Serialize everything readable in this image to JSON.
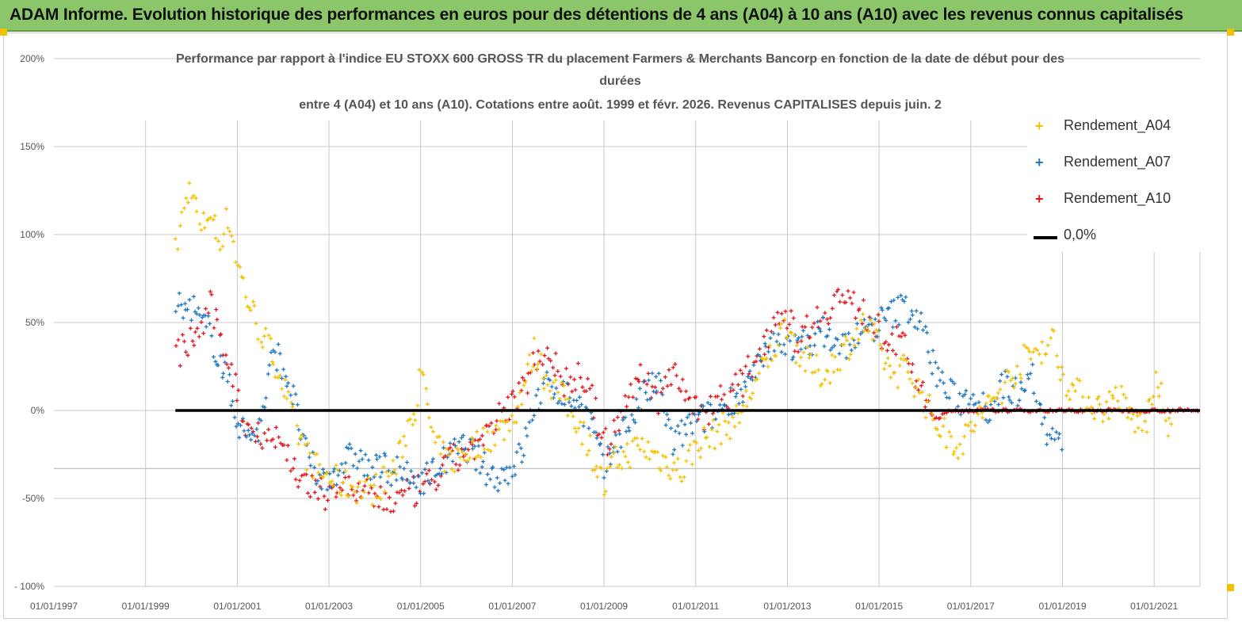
{
  "header": {
    "title": "ADAM Informe. Evolution historique des performances en euros pour des détentions de 4 ans (A04) à 10 ans (A10) avec les revenus connus capitalisés"
  },
  "colors": {
    "header_bg": "#8cc66b",
    "a04": "#f2c200",
    "a07": "#1f78c1",
    "a10": "#e8141c",
    "zero": "#000000",
    "grid": "#c8c8c8",
    "axis_text": "#555555"
  },
  "chart_data": {
    "type": "scatter",
    "title_lines": [
      "Performance par rapport à l'indice EU STOXX 600 GROSS TR  du placement Farmers & Merchants Bancorp en fonction de la date de début pour des",
      "durées",
      "entre 4 (A04) et 10 ans (A10).  Cotations entre août. 1999 et févr.  2026. Revenus CAPITALISES depuis juin. 2"
    ],
    "x_tick_labels": [
      "01/01/1997",
      "01/01/1999",
      "01/01/2001",
      "01/01/2003",
      "01/01/2005",
      "01/01/2007",
      "01/01/2009",
      "01/01/2011",
      "01/01/2013",
      "01/01/2015",
      "01/01/2017",
      "01/01/2019",
      "01/01/2021"
    ],
    "x_range": [
      1997.0,
      2022.0
    ],
    "y_tick_labels": [
      "200%",
      "150%",
      "100%",
      "50%",
      "0%",
      "-50%",
      "- 100%"
    ],
    "y_ticks": [
      200,
      150,
      100,
      50,
      0,
      -50,
      -100
    ],
    "ylim": [
      -100,
      200
    ],
    "legend": [
      {
        "name": "Rendement_A04",
        "marker": "+",
        "color_key": "a04"
      },
      {
        "name": "Rendement_A07",
        "marker": "+",
        "color_key": "a07"
      },
      {
        "name": "Rendement_A10",
        "marker": "+",
        "color_key": "a10"
      },
      {
        "name": "0,0%",
        "marker": "line",
        "color_key": "zero"
      }
    ],
    "reference_line": {
      "name": "0,0%",
      "y": 0,
      "x_start": 1999.65,
      "x_end": 2022.0
    },
    "series": [
      {
        "name": "Rendement_A04",
        "color_key": "a04",
        "x_start": 1999.65,
        "x_end": 2021.4,
        "x": [
          1999.65,
          1999.8,
          2000.0,
          2000.2,
          2000.4,
          2000.6,
          2000.8,
          2001.0,
          2001.2,
          2001.5,
          2001.8,
          2002.0,
          2002.2,
          2002.5,
          2002.8,
          2003.0,
          2003.3,
          2003.6,
          2003.9,
          2004.2,
          2004.5,
          2004.7,
          2004.9,
          2005.0,
          2005.1,
          2005.3,
          2005.6,
          2005.9,
          2006.2,
          2006.5,
          2006.8,
          2007.0,
          2007.2,
          2007.5,
          2007.7,
          2008.0,
          2008.3,
          2008.6,
          2008.9,
          2009.0,
          2009.2,
          2009.5,
          2009.8,
          2010.1,
          2010.4,
          2010.7,
          2011.0,
          2011.3,
          2011.6,
          2011.9,
          2012.2,
          2012.5,
          2012.8,
          2013.0,
          2013.2,
          2013.5,
          2013.8,
          2014.1,
          2014.4,
          2014.7,
          2015.0,
          2015.3,
          2015.6,
          2015.9,
          2016.2,
          2016.5,
          2016.8,
          2017.0,
          2017.3,
          2017.6,
          2017.9,
          2018.2,
          2018.5,
          2018.8,
          2019.0,
          2019.3,
          2019.6,
          2019.9,
          2020.2,
          2020.5,
          2020.8,
          2021.0,
          2021.2,
          2021.4
        ],
        "y": [
          90,
          110,
          130,
          100,
          115,
          95,
          110,
          85,
          65,
          45,
          30,
          15,
          -5,
          -25,
          -35,
          -38,
          -42,
          -44,
          -46,
          -40,
          -30,
          -10,
          5,
          20,
          10,
          -20,
          -30,
          -25,
          -20,
          -15,
          -10,
          -5,
          10,
          35,
          20,
          10,
          0,
          -15,
          -35,
          -45,
          -30,
          -25,
          -20,
          -25,
          -30,
          -35,
          -20,
          -15,
          -10,
          -5,
          10,
          25,
          40,
          50,
          35,
          25,
          20,
          30,
          40,
          50,
          35,
          20,
          25,
          10,
          -5,
          -15,
          -20,
          -10,
          0,
          10,
          20,
          30,
          35,
          40,
          20,
          10,
          5,
          0,
          10,
          -5,
          -10,
          15,
          5,
          -20
        ]
      },
      {
        "name": "Rendement_A07",
        "color_key": "a07",
        "x_start": 1999.65,
        "x_end": 2019.0,
        "x": [
          1999.65,
          1999.8,
          2000.0,
          2000.2,
          2000.4,
          2000.6,
          2000.8,
          2001.0,
          2001.2,
          2001.5,
          2001.8,
          2002.0,
          2002.2,
          2002.5,
          2002.8,
          2003.0,
          2003.3,
          2003.6,
          2003.9,
          2004.2,
          2004.5,
          2004.8,
          2005.1,
          2005.4,
          2005.7,
          2006.0,
          2006.3,
          2006.6,
          2006.9,
          2007.2,
          2007.5,
          2007.8,
          2008.1,
          2008.4,
          2008.7,
          2009.0,
          2009.3,
          2009.6,
          2009.9,
          2010.2,
          2010.5,
          2010.8,
          2011.1,
          2011.4,
          2011.7,
          2012.0,
          2012.3,
          2012.6,
          2012.9,
          2013.2,
          2013.5,
          2013.8,
          2014.1,
          2014.4,
          2014.7,
          2015.0,
          2015.3,
          2015.6,
          2015.9,
          2016.2,
          2016.5,
          2016.8,
          2017.1,
          2017.4,
          2017.7,
          2018.0,
          2018.3,
          2018.6,
          2018.9,
          2019.0
        ],
        "y": [
          65,
          55,
          60,
          50,
          45,
          30,
          15,
          -5,
          -15,
          -10,
          35,
          25,
          10,
          -25,
          -40,
          -38,
          -30,
          -25,
          -35,
          -32,
          -35,
          -40,
          -38,
          -32,
          -25,
          -20,
          -30,
          -38,
          -35,
          -25,
          5,
          15,
          10,
          5,
          -5,
          -35,
          -15,
          -5,
          10,
          15,
          -20,
          -10,
          -5,
          -3,
          5,
          10,
          20,
          35,
          40,
          35,
          40,
          45,
          35,
          40,
          45,
          50,
          55,
          60,
          50,
          25,
          10,
          5,
          10,
          0,
          15,
          10,
          25,
          -10,
          -20,
          -15
        ]
      },
      {
        "name": "Rendement_A10",
        "color_key": "a10",
        "x_start": 1999.65,
        "x_end": 2022.0,
        "x": [
          1999.65,
          1999.8,
          2000.0,
          2000.2,
          2000.4,
          2000.6,
          2000.8,
          2001.0,
          2001.2,
          2001.5,
          2001.8,
          2002.0,
          2002.3,
          2002.6,
          2002.9,
          2003.2,
          2003.5,
          2003.8,
          2004.1,
          2004.4,
          2004.7,
          2005.0,
          2005.3,
          2005.6,
          2005.9,
          2006.2,
          2006.5,
          2006.8,
          2007.0,
          2007.2,
          2007.5,
          2007.8,
          2008.1,
          2008.4,
          2008.7,
          2009.0,
          2009.3,
          2009.6,
          2009.9,
          2010.2,
          2010.5,
          2010.8,
          2011.1,
          2011.4,
          2011.7,
          2012.0,
          2012.3,
          2012.6,
          2012.9,
          2013.2,
          2013.5,
          2013.8,
          2014.1,
          2014.4,
          2014.7,
          2015.0,
          2015.3,
          2015.6,
          2015.9,
          2016.2,
          2016.6,
          2017.0,
          2018.0,
          2019.0,
          2020.0,
          2021.0,
          2022.0
        ],
        "y": [
          30,
          35,
          40,
          45,
          60,
          45,
          30,
          10,
          -10,
          -12,
          -15,
          -20,
          -35,
          -45,
          -48,
          -42,
          -45,
          -48,
          -50,
          -52,
          -48,
          -45,
          -40,
          -30,
          -25,
          -20,
          -15,
          0,
          5,
          10,
          30,
          35,
          15,
          20,
          10,
          -20,
          -10,
          15,
          20,
          5,
          25,
          10,
          -5,
          5,
          10,
          15,
          30,
          45,
          60,
          40,
          50,
          55,
          65,
          60,
          55,
          45,
          40,
          35,
          10,
          -5,
          0,
          0,
          0,
          0,
          0,
          0,
          0
        ]
      }
    ]
  }
}
